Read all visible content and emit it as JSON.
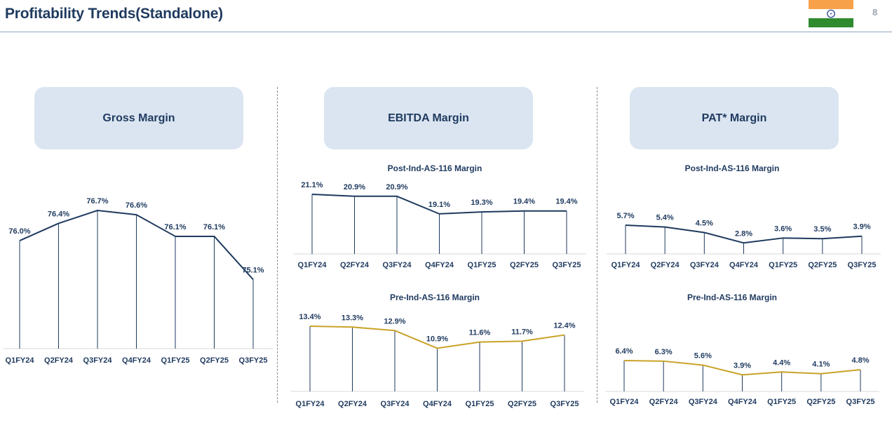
{
  "page": {
    "title": "Profitability Trends(Standalone)",
    "page_number": "8",
    "flag": "india-flag"
  },
  "panels": {
    "gross": {
      "header": "Gross Margin"
    },
    "ebitda": {
      "header": "EBITDA Margin"
    },
    "pat": {
      "header": "PAT* Margin"
    }
  },
  "colors": {
    "navy": "#1f3a5f",
    "gold": "#c9a227",
    "panel_bg": "#dbe5f1",
    "saffron": "#f7a24a",
    "green": "#2e8b2e",
    "chakra": "#1a3a8f"
  },
  "chart_data": [
    {
      "id": "gross",
      "type": "line",
      "title": "",
      "categories": [
        "Q1FY24",
        "Q2FY24",
        "Q3FY24",
        "Q4FY24",
        "Q1FY25",
        "Q2FY25",
        "Q3FY25"
      ],
      "series": [
        {
          "values": [
            76.0,
            76.4,
            76.7,
            76.6,
            76.1,
            76.1,
            75.1
          ]
        }
      ],
      "labels": [
        "76.0%",
        "76.4%",
        "76.7%",
        "76.6%",
        "76.1%",
        "76.1%",
        "75.1%"
      ],
      "color": "#1f3a5f",
      "drop_lines": true,
      "grid": false
    },
    {
      "id": "ebitda_post",
      "type": "line",
      "title": "Post-Ind-AS-116 Margin",
      "categories": [
        "Q1FY24",
        "Q2FY24",
        "Q3FY24",
        "Q4FY24",
        "Q1FY25",
        "Q2FY25",
        "Q3FY25"
      ],
      "series": [
        {
          "values": [
            21.1,
            20.9,
            20.9,
            19.1,
            19.3,
            19.4,
            19.4
          ]
        }
      ],
      "labels": [
        "21.1%",
        "20.9%",
        "20.9%",
        "19.1%",
        "19.3%",
        "19.4%",
        "19.4%"
      ],
      "color": "#1f3a5f",
      "drop_lines": true,
      "grid": false
    },
    {
      "id": "ebitda_pre",
      "type": "line",
      "title": "Pre-Ind-AS-116 Margin",
      "categories": [
        "Q1FY24",
        "Q2FY24",
        "Q3FY24",
        "Q4FY24",
        "Q1FY25",
        "Q2FY25",
        "Q3FY25"
      ],
      "series": [
        {
          "values": [
            13.4,
            13.3,
            12.9,
            10.9,
            11.6,
            11.7,
            12.4
          ]
        }
      ],
      "labels": [
        "13.4%",
        "13.3%",
        "12.9%",
        "10.9%",
        "11.6%",
        "11.7%",
        "12.4%"
      ],
      "color": "#c9a227",
      "drop_lines": true,
      "grid": false
    },
    {
      "id": "pat_post",
      "type": "line",
      "title": "Post-Ind-AS-116 Margin",
      "categories": [
        "Q1FY24",
        "Q2FY24",
        "Q3FY24",
        "Q4FY24",
        "Q1FY25",
        "Q2FY25",
        "Q3FY25"
      ],
      "series": [
        {
          "values": [
            5.7,
            5.4,
            4.5,
            2.8,
            3.6,
            3.5,
            3.9
          ]
        }
      ],
      "labels": [
        "5.7%",
        "5.4%",
        "4.5%",
        "2.8%",
        "3.6%",
        "3.5%",
        "3.9%"
      ],
      "color": "#1f3a5f",
      "drop_lines": true,
      "grid": false
    },
    {
      "id": "pat_pre",
      "type": "line",
      "title": "Pre-Ind-AS-116 Margin",
      "categories": [
        "Q1FY24",
        "Q2FY24",
        "Q3FY24",
        "Q4FY24",
        "Q1FY25",
        "Q2FY25",
        "Q3FY25"
      ],
      "series": [
        {
          "values": [
            6.4,
            6.3,
            5.6,
            3.9,
            4.4,
            4.1,
            4.8
          ]
        }
      ],
      "labels": [
        "6.4%",
        "6.3%",
        "5.6%",
        "3.9%",
        "4.4%",
        "4.1%",
        "4.8%"
      ],
      "color": "#c9a227",
      "drop_lines": true,
      "grid": false
    }
  ]
}
